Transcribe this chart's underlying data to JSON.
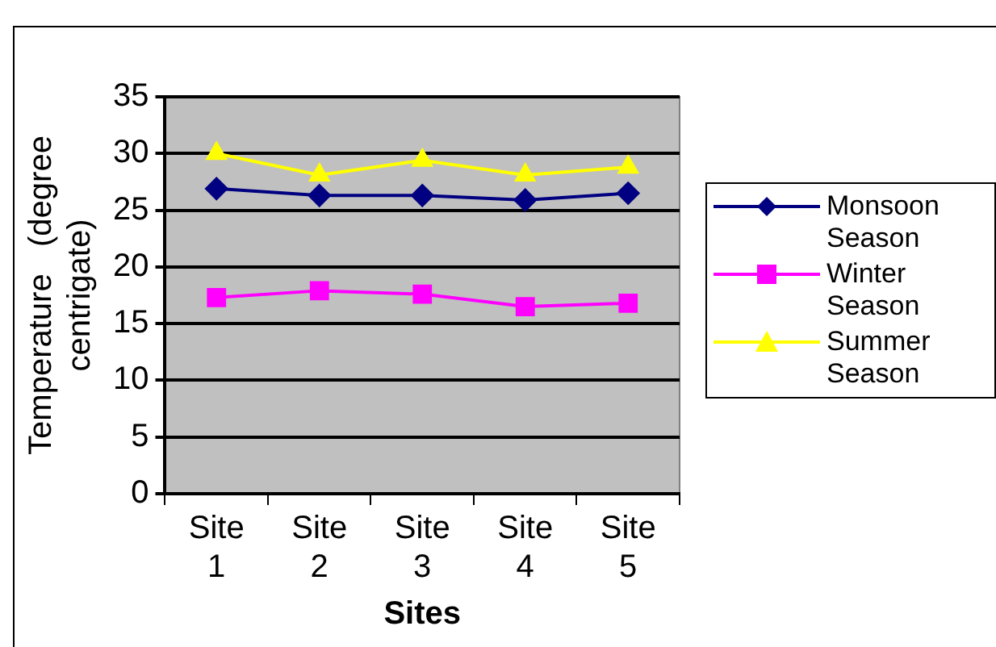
{
  "chart_data": {
    "type": "line",
    "xlabel": "Sites",
    "ylabel": "Temperature   (degree centrigate)",
    "categories": [
      "Site 1",
      "Site 2",
      "Site 3",
      "Site 4",
      "Site 5"
    ],
    "series": [
      {
        "name": "Monsoon Season",
        "color": "#000080",
        "marker": "diamond",
        "values": [
          26.9,
          26.3,
          26.3,
          25.9,
          26.5
        ]
      },
      {
        "name": "Winter Season",
        "color": "#ff00ff",
        "marker": "square",
        "values": [
          17.3,
          17.9,
          17.6,
          16.5,
          16.8
        ]
      },
      {
        "name": "Summer Season",
        "color": "#ffff00",
        "marker": "triangle",
        "values": [
          30.0,
          28.1,
          29.4,
          28.1,
          28.8
        ]
      }
    ],
    "ylim": [
      0,
      35
    ],
    "yticks": [
      0,
      5,
      10,
      15,
      20,
      25,
      30,
      35
    ],
    "grid": "y",
    "legend": "right"
  }
}
